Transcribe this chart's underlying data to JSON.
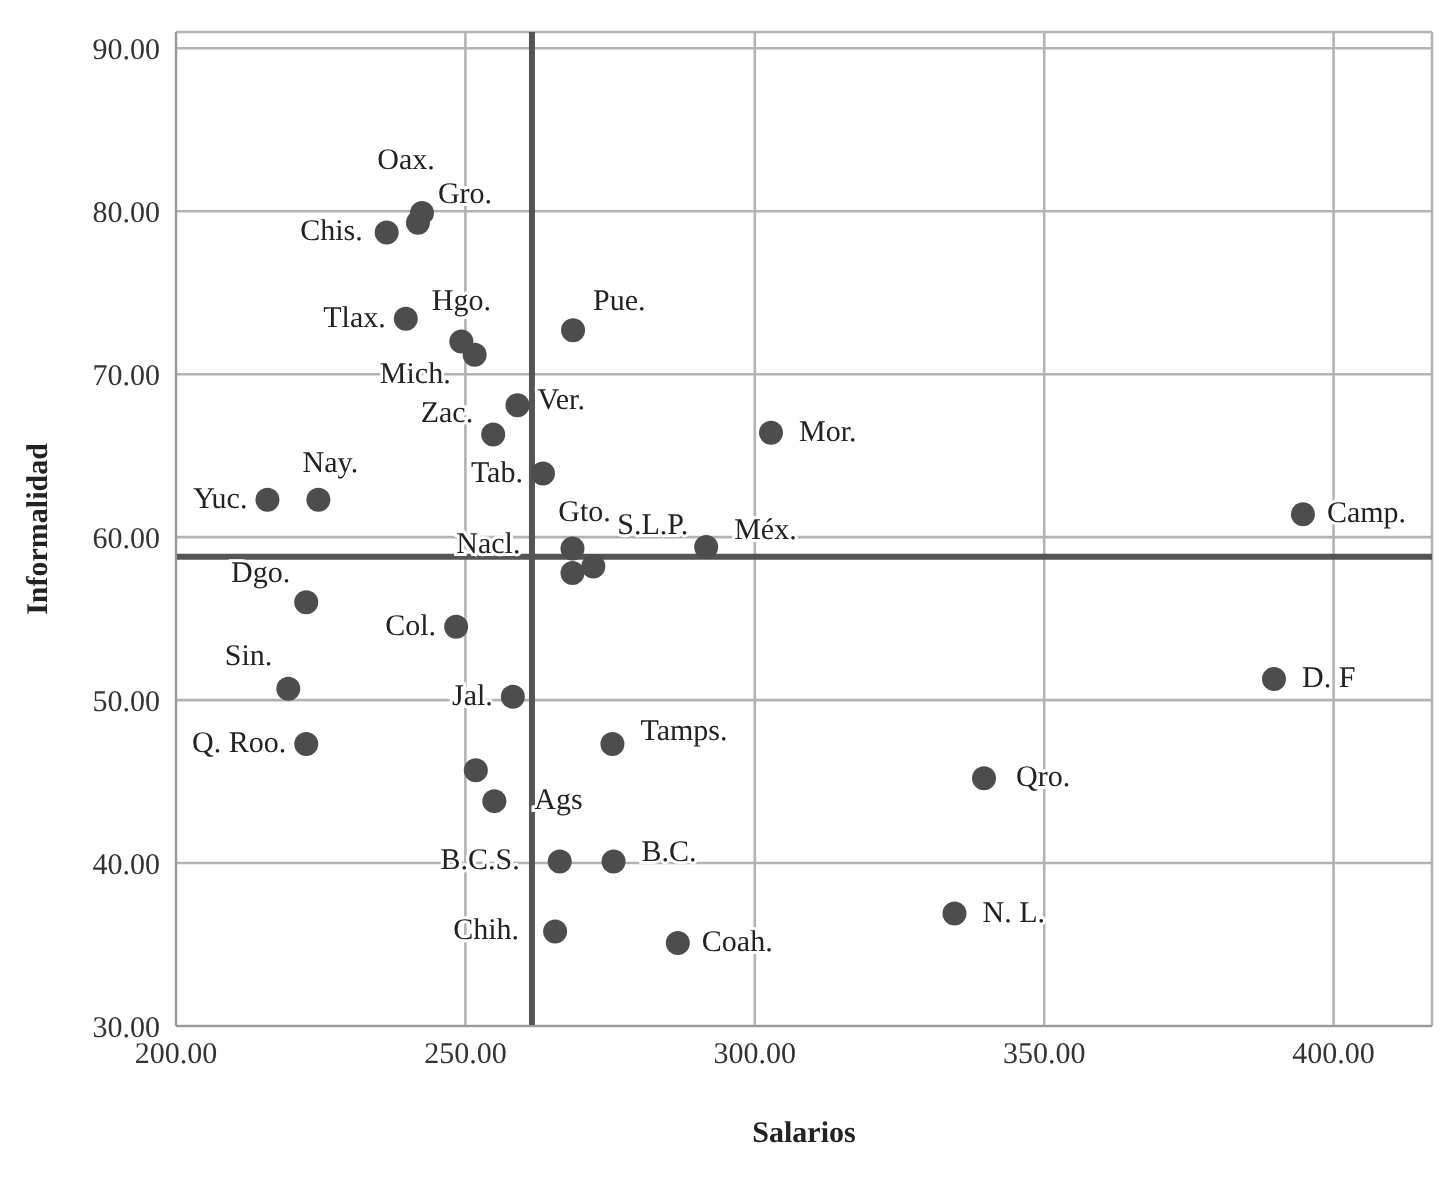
{
  "chart_data": {
    "type": "scatter",
    "xlabel": "Salarios",
    "ylabel": "Informalidad",
    "x": [
      242.5,
      241.8,
      236.4,
      239.7,
      249.3,
      251.6,
      268.6,
      259.0,
      254.8,
      263.4,
      224.6,
      215.8,
      302.8,
      394.7,
      268.5,
      268.5,
      272.1,
      291.6,
      222.5,
      248.4,
      219.4,
      258.2,
      389.7,
      275.4,
      222.5,
      251.8,
      339.6,
      255.0,
      266.3,
      275.6,
      334.5,
      265.5,
      286.7
    ],
    "series": [
      {
        "color": "#4d4d4d",
        "values": [
          79.9,
          79.3,
          78.7,
          73.4,
          72.0,
          71.2,
          72.7,
          68.1,
          66.3,
          63.9,
          62.3,
          62.3,
          66.4,
          61.4,
          59.3,
          57.8,
          58.2,
          59.4,
          56.0,
          54.5,
          50.7,
          50.2,
          51.3,
          47.3,
          47.3,
          45.7,
          45.2,
          43.8,
          40.1,
          40.1,
          36.9,
          35.8,
          35.1
        ]
      }
    ],
    "xlim": [
      200,
      417
    ],
    "xticks": [
      {
        "value": 200,
        "label": "200.00"
      },
      {
        "value": 250,
        "label": "250.00"
      },
      {
        "value": 300,
        "label": "300.00"
      },
      {
        "value": 350,
        "label": "350.00"
      },
      {
        "value": 400,
        "label": "400.00"
      }
    ],
    "ylim": [
      30,
      91
    ],
    "yticks": [
      {
        "value": 30,
        "label": "30.00"
      },
      {
        "value": 40,
        "label": "40.00"
      },
      {
        "value": 50,
        "label": "50.00"
      },
      {
        "value": 60,
        "label": "60.00"
      },
      {
        "value": 70,
        "label": "70.00"
      },
      {
        "value": 80,
        "label": "80.00"
      },
      {
        "value": 90,
        "label": "90.00"
      }
    ],
    "grid": true,
    "marker": "circle",
    "ref_lines": [
      {
        "axis": "x",
        "value": 261.5,
        "color": "#555555"
      },
      {
        "axis": "y",
        "value": 58.8,
        "color": "#555555"
      }
    ],
    "annotations": [
      {
        "text": "Oax.",
        "x": 242.5,
        "y": 79.9
      },
      {
        "text": "Gro.",
        "x": 241.8,
        "y": 79.3
      },
      {
        "text": "Chis.",
        "x": 236.4,
        "y": 78.7
      },
      {
        "text": "Tlax.",
        "x": 239.7,
        "y": 73.4
      },
      {
        "text": "Hgo.",
        "x": 249.3,
        "y": 72.0
      },
      {
        "text": "Mich.",
        "x": 251.6,
        "y": 71.2
      },
      {
        "text": "Pue.",
        "x": 268.6,
        "y": 72.7
      },
      {
        "text": "Ver.",
        "x": 259.0,
        "y": 68.1
      },
      {
        "text": "Zac.",
        "x": 254.8,
        "y": 66.3
      },
      {
        "text": "Tab.",
        "x": 263.4,
        "y": 63.9
      },
      {
        "text": "Nay.",
        "x": 224.6,
        "y": 62.3
      },
      {
        "text": "Yuc.",
        "x": 215.8,
        "y": 62.3
      },
      {
        "text": "Mor.",
        "x": 302.8,
        "y": 66.4
      },
      {
        "text": "Camp.",
        "x": 394.7,
        "y": 61.4
      },
      {
        "text": "Gto.",
        "x": 268.5,
        "y": 59.3
      },
      {
        "text": "Nacl.",
        "x": 268.5,
        "y": 57.8
      },
      {
        "text": "S.L.P.",
        "x": 272.1,
        "y": 58.2
      },
      {
        "text": "Méx.",
        "x": 291.6,
        "y": 59.4
      },
      {
        "text": "Dgo.",
        "x": 222.5,
        "y": 56.0
      },
      {
        "text": "Col.",
        "x": 248.4,
        "y": 54.5
      },
      {
        "text": "Sin.",
        "x": 219.4,
        "y": 50.7
      },
      {
        "text": "Jal.",
        "x": 258.2,
        "y": 50.2
      },
      {
        "text": "D. F",
        "x": 389.7,
        "y": 51.3
      },
      {
        "text": "Tamps.",
        "x": 275.4,
        "y": 47.3
      },
      {
        "text": "Q. Roo.",
        "x": 222.5,
        "y": 47.3
      },
      {
        "text": "Qro.",
        "x": 339.6,
        "y": 45.2
      },
      {
        "text": "Ags",
        "x": 255.0,
        "y": 43.8
      },
      {
        "text": "B.C.S.",
        "x": 266.3,
        "y": 40.1
      },
      {
        "text": "B.C.",
        "x": 275.6,
        "y": 40.1
      },
      {
        "text": "N. L.",
        "x": 334.5,
        "y": 36.9
      },
      {
        "text": "Chih.",
        "x": 265.5,
        "y": 35.8
      },
      {
        "text": "Coah.",
        "x": 286.7,
        "y": 35.1
      }
    ]
  }
}
